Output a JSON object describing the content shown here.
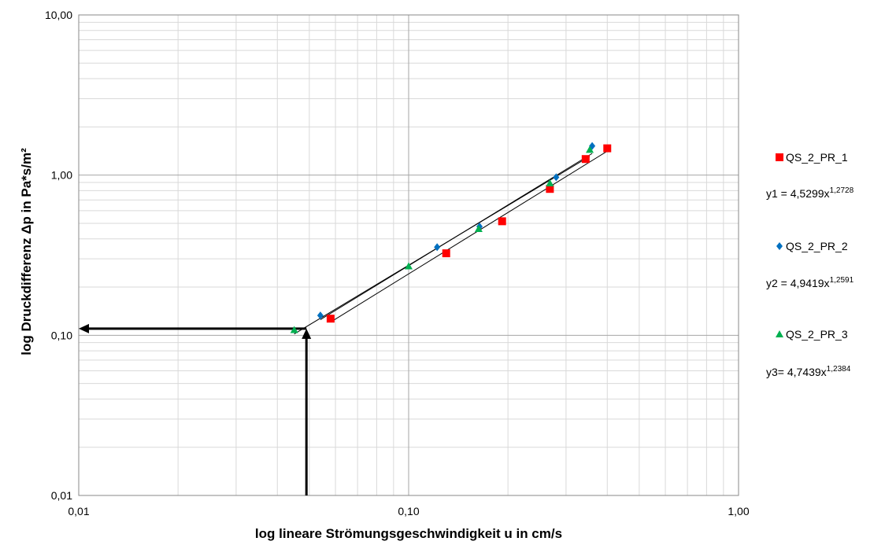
{
  "chart_data": {
    "type": "scatter",
    "title": "",
    "xlabel": "log lineare Strömungsgeschwindigkeit u in cm/s",
    "ylabel": "log Druckdifferenz Δp  in Pa*s/m²",
    "x_scale": "log",
    "y_scale": "log",
    "xlim": [
      0.01,
      1.0
    ],
    "ylim": [
      0.01,
      10.0
    ],
    "x_tick_labels": [
      "0,01",
      "0,10",
      "1,00"
    ],
    "y_tick_labels": [
      "0,01",
      "0,10",
      "1,00",
      "10,00"
    ],
    "grid": true,
    "legend_position": "right",
    "series": [
      {
        "name": "QS_2_PR_1",
        "marker": "square",
        "color": "#ff0000",
        "points": [
          [
            0.058,
            0.127
          ],
          [
            0.13,
            0.325
          ],
          [
            0.192,
            0.515
          ],
          [
            0.268,
            0.82
          ],
          [
            0.344,
            1.26
          ],
          [
            0.4,
            1.47
          ]
        ],
        "fit": {
          "a": 4.5299,
          "b": 1.2728,
          "label": "y1 = 4,5299x",
          "exponent_label": "1,2728"
        }
      },
      {
        "name": "QS_2_PR_2",
        "marker": "diamond",
        "color": "#0070c0",
        "points": [
          [
            0.054,
            0.133
          ],
          [
            0.122,
            0.355
          ],
          [
            0.164,
            0.478
          ],
          [
            0.28,
            0.97
          ],
          [
            0.36,
            1.52
          ]
        ],
        "fit": {
          "a": 4.9419,
          "b": 1.2591,
          "label": "y2 = 4,9419x",
          "exponent_label": "1,2591"
        }
      },
      {
        "name": "QS_2_PR_3",
        "marker": "triangle",
        "color": "#00b050",
        "points": [
          [
            0.045,
            0.108
          ],
          [
            0.1,
            0.27
          ],
          [
            0.163,
            0.462
          ],
          [
            0.268,
            0.89
          ],
          [
            0.354,
            1.44
          ]
        ],
        "fit": {
          "a": 4.7439,
          "b": 1.2384,
          "label": "y3= 4,7439x",
          "exponent_label": "1,2384"
        }
      }
    ],
    "annotations": {
      "x_reading": 0.049,
      "y_reading": 0.11
    }
  }
}
